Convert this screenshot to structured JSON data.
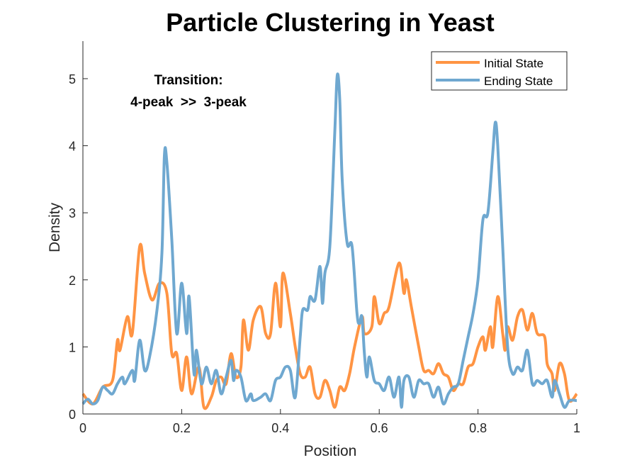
{
  "chart_data": {
    "type": "line",
    "title": "Particle Clustering in Yeast",
    "xlabel": "Position",
    "ylabel": "Density",
    "xlim": [
      0,
      1
    ],
    "ylim": [
      0,
      5.56
    ],
    "xticks": [
      "0",
      "0.2",
      "0.4",
      "0.6",
      "0.8",
      "1"
    ],
    "xtick_values": [
      0,
      0.2,
      0.4,
      0.6,
      0.8,
      1
    ],
    "yticks": [
      "0",
      "1",
      "2",
      "3",
      "4",
      "5"
    ],
    "ytick_values": [
      0,
      1,
      2,
      3,
      4,
      5
    ],
    "grid": false,
    "legend_position": "top-right",
    "annotation": [
      "Transition:",
      "4-peak  >>  3-peak"
    ],
    "series": [
      {
        "name": "Initial State",
        "color": "#FF9443",
        "x": [
          0,
          0.02,
          0.04,
          0.06,
          0.07,
          0.075,
          0.09,
          0.1,
          0.115,
          0.125,
          0.14,
          0.155,
          0.17,
          0.18,
          0.19,
          0.2,
          0.21,
          0.22,
          0.235,
          0.245,
          0.26,
          0.27,
          0.28,
          0.29,
          0.3,
          0.31,
          0.32,
          0.325,
          0.335,
          0.345,
          0.36,
          0.37,
          0.38,
          0.39,
          0.4,
          0.405,
          0.42,
          0.43,
          0.44,
          0.45,
          0.46,
          0.47,
          0.48,
          0.49,
          0.5,
          0.51,
          0.52,
          0.53,
          0.54,
          0.55,
          0.565,
          0.57,
          0.585,
          0.59,
          0.6,
          0.61,
          0.62,
          0.64,
          0.65,
          0.655,
          0.665,
          0.68,
          0.69,
          0.7,
          0.71,
          0.72,
          0.73,
          0.74,
          0.75,
          0.76,
          0.77,
          0.78,
          0.79,
          0.8,
          0.81,
          0.815,
          0.825,
          0.83,
          0.84,
          0.85,
          0.855,
          0.86,
          0.87,
          0.88,
          0.89,
          0.9,
          0.91,
          0.92,
          0.935,
          0.94,
          0.95,
          0.955,
          0.965,
          0.975,
          0.985,
          1.0
        ],
        "y": [
          0.3,
          0.15,
          0.4,
          0.5,
          1.1,
          0.95,
          1.45,
          1.2,
          2.5,
          2.1,
          1.7,
          1.95,
          1.8,
          0.9,
          0.9,
          0.35,
          0.85,
          0.3,
          0.7,
          0.1,
          0.25,
          0.5,
          0.55,
          0.45,
          0.9,
          0.55,
          0.7,
          1.4,
          0.95,
          1.4,
          1.6,
          1.2,
          1.2,
          1.95,
          1.3,
          2.1,
          1.5,
          1.0,
          0.6,
          0.55,
          0.7,
          0.3,
          0.25,
          0.5,
          0.35,
          0.1,
          0.4,
          0.35,
          0.6,
          1.0,
          1.45,
          1.2,
          1.3,
          1.75,
          1.35,
          1.5,
          1.6,
          2.25,
          1.8,
          2.0,
          1.6,
          1.0,
          0.65,
          0.65,
          0.6,
          0.75,
          0.6,
          0.55,
          0.35,
          0.45,
          0.45,
          0.7,
          0.75,
          1.0,
          1.15,
          0.95,
          1.3,
          1.0,
          1.75,
          1.2,
          0.95,
          1.3,
          1.1,
          1.45,
          1.55,
          1.25,
          1.5,
          1.2,
          1.15,
          0.75,
          0.6,
          0.35,
          0.75,
          0.6,
          0.2,
          0.3
        ]
      },
      {
        "name": "Ending State",
        "color": "#6FA8D0",
        "x": [
          0,
          0.01,
          0.02,
          0.03,
          0.04,
          0.05,
          0.06,
          0.07,
          0.08,
          0.085,
          0.1,
          0.105,
          0.115,
          0.125,
          0.135,
          0.15,
          0.16,
          0.165,
          0.17,
          0.18,
          0.19,
          0.2,
          0.21,
          0.215,
          0.225,
          0.23,
          0.24,
          0.25,
          0.26,
          0.27,
          0.28,
          0.29,
          0.3,
          0.305,
          0.31,
          0.32,
          0.33,
          0.34,
          0.345,
          0.36,
          0.37,
          0.38,
          0.39,
          0.4,
          0.41,
          0.42,
          0.43,
          0.44,
          0.445,
          0.455,
          0.46,
          0.47,
          0.48,
          0.485,
          0.49,
          0.5,
          0.51,
          0.515,
          0.52,
          0.525,
          0.535,
          0.545,
          0.555,
          0.56,
          0.565,
          0.57,
          0.575,
          0.58,
          0.59,
          0.6,
          0.61,
          0.62,
          0.63,
          0.64,
          0.645,
          0.65,
          0.66,
          0.67,
          0.68,
          0.69,
          0.7,
          0.71,
          0.72,
          0.73,
          0.74,
          0.75,
          0.76,
          0.77,
          0.78,
          0.79,
          0.8,
          0.81,
          0.82,
          0.83,
          0.835,
          0.84,
          0.85,
          0.86,
          0.87,
          0.88,
          0.89,
          0.9,
          0.91,
          0.92,
          0.93,
          0.94,
          0.95,
          0.955,
          0.965,
          0.975,
          0.985,
          1.0
        ],
        "y": [
          0.15,
          0.22,
          0.15,
          0.2,
          0.4,
          0.35,
          0.3,
          0.45,
          0.55,
          0.45,
          0.65,
          0.5,
          1.1,
          0.65,
          0.85,
          1.55,
          2.4,
          3.85,
          3.75,
          2.6,
          1.2,
          1.95,
          1.2,
          1.75,
          0.6,
          0.95,
          0.45,
          0.7,
          0.45,
          0.65,
          0.3,
          0.55,
          0.8,
          0.5,
          0.65,
          0.55,
          0.2,
          0.3,
          0.2,
          0.25,
          0.3,
          0.2,
          0.5,
          0.55,
          0.7,
          0.65,
          0.25,
          1.15,
          1.55,
          1.55,
          1.75,
          1.7,
          2.2,
          1.65,
          2.1,
          2.5,
          4.2,
          5.05,
          4.7,
          3.5,
          2.55,
          2.5,
          1.5,
          1.35,
          1.45,
          0.9,
          0.55,
          0.85,
          0.5,
          0.45,
          0.35,
          0.55,
          0.25,
          0.55,
          0.1,
          0.5,
          0.55,
          0.25,
          0.5,
          0.45,
          0.45,
          0.25,
          0.4,
          0.15,
          0.3,
          0.4,
          0.45,
          0.8,
          1.15,
          1.5,
          2.0,
          2.9,
          3.0,
          3.9,
          4.35,
          4.0,
          2.5,
          1.0,
          0.6,
          0.7,
          0.65,
          0.95,
          0.45,
          0.5,
          0.45,
          0.5,
          0.25,
          0.5,
          0.3,
          0.1,
          0.2,
          0.2
        ]
      }
    ]
  }
}
